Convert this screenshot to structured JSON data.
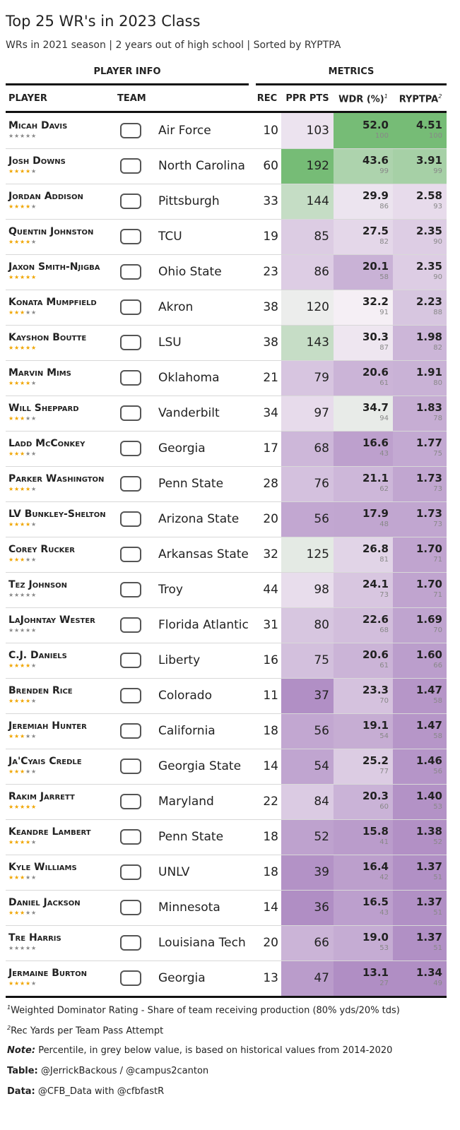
{
  "header": {
    "title": "Top 25 WR's in 2023 Class",
    "subtitle": "WRs in 2021 season | 2 years out of high school | Sorted by RYPTPA"
  },
  "table": {
    "groups": [
      "PLAYER INFO",
      "METRICS"
    ],
    "columns": {
      "player": "PLAYER",
      "team": "TEAM",
      "rec": "REC",
      "ppr_pts": "PPR PTS",
      "wdr": "WDR (%)",
      "wdr_sup": "1",
      "ryptpa": "RYPTPA",
      "ryptpa_sup": "2"
    },
    "rows": [
      {
        "player": "Micah Davis",
        "stars": 0,
        "team": "Air Force",
        "rec": 10,
        "ppr_pts": 103,
        "wdr": "52.0",
        "wdr_pct": 100,
        "ryptpa": "4.51",
        "ryptpa_pct": 100
      },
      {
        "player": "Josh Downs",
        "stars": 4,
        "team": "North Carolina",
        "rec": 60,
        "ppr_pts": 192,
        "wdr": "43.6",
        "wdr_pct": 99,
        "ryptpa": "3.91",
        "ryptpa_pct": 99
      },
      {
        "player": "Jordan Addison",
        "stars": 4,
        "team": "Pittsburgh",
        "rec": 33,
        "ppr_pts": 144,
        "wdr": "29.9",
        "wdr_pct": 86,
        "ryptpa": "2.58",
        "ryptpa_pct": 93
      },
      {
        "player": "Quentin Johnston",
        "stars": 4,
        "team": "TCU",
        "rec": 19,
        "ppr_pts": 85,
        "wdr": "27.5",
        "wdr_pct": 82,
        "ryptpa": "2.35",
        "ryptpa_pct": 90
      },
      {
        "player": "Jaxon Smith-Njigba",
        "stars": 5,
        "team": "Ohio State",
        "rec": 23,
        "ppr_pts": 86,
        "wdr": "20.1",
        "wdr_pct": 58,
        "ryptpa": "2.35",
        "ryptpa_pct": 90
      },
      {
        "player": "Konata Mumpfield",
        "stars": 3,
        "team": "Akron",
        "rec": 38,
        "ppr_pts": 120,
        "wdr": "32.2",
        "wdr_pct": 91,
        "ryptpa": "2.23",
        "ryptpa_pct": 88
      },
      {
        "player": "Kayshon Boutte",
        "stars": 5,
        "team": "LSU",
        "rec": 38,
        "ppr_pts": 143,
        "wdr": "30.3",
        "wdr_pct": 87,
        "ryptpa": "1.98",
        "ryptpa_pct": 82
      },
      {
        "player": "Marvin Mims",
        "stars": 4,
        "team": "Oklahoma",
        "rec": 21,
        "ppr_pts": 79,
        "wdr": "20.6",
        "wdr_pct": 61,
        "ryptpa": "1.91",
        "ryptpa_pct": 80
      },
      {
        "player": "Will Sheppard",
        "stars": 3,
        "team": "Vanderbilt",
        "rec": 34,
        "ppr_pts": 97,
        "wdr": "34.7",
        "wdr_pct": 94,
        "ryptpa": "1.83",
        "ryptpa_pct": 78
      },
      {
        "player": "Ladd McConkey",
        "stars": 3,
        "team": "Georgia",
        "rec": 17,
        "ppr_pts": 68,
        "wdr": "16.6",
        "wdr_pct": 43,
        "ryptpa": "1.77",
        "ryptpa_pct": 75
      },
      {
        "player": "Parker Washington",
        "stars": 4,
        "team": "Penn State",
        "rec": 28,
        "ppr_pts": 76,
        "wdr": "21.1",
        "wdr_pct": 62,
        "ryptpa": "1.73",
        "ryptpa_pct": 73
      },
      {
        "player": "LV Bunkley-Shelton",
        "stars": 4,
        "team": "Arizona State",
        "rec": 20,
        "ppr_pts": 56,
        "wdr": "17.9",
        "wdr_pct": 48,
        "ryptpa": "1.73",
        "ryptpa_pct": 73
      },
      {
        "player": "Corey Rucker",
        "stars": 3,
        "team": "Arkansas State",
        "rec": 32,
        "ppr_pts": 125,
        "wdr": "26.8",
        "wdr_pct": 81,
        "ryptpa": "1.70",
        "ryptpa_pct": 71
      },
      {
        "player": "Tez Johnson",
        "stars": 0,
        "team": "Troy",
        "rec": 44,
        "ppr_pts": 98,
        "wdr": "24.1",
        "wdr_pct": 73,
        "ryptpa": "1.70",
        "ryptpa_pct": 71
      },
      {
        "player": "LaJohntay Wester",
        "stars": 0,
        "team": "Florida Atlantic",
        "rec": 31,
        "ppr_pts": 80,
        "wdr": "22.6",
        "wdr_pct": 68,
        "ryptpa": "1.69",
        "ryptpa_pct": 70
      },
      {
        "player": "C.J. Daniels",
        "stars": 4,
        "team": "Liberty",
        "rec": 16,
        "ppr_pts": 75,
        "wdr": "20.6",
        "wdr_pct": 61,
        "ryptpa": "1.60",
        "ryptpa_pct": 66
      },
      {
        "player": "Brenden Rice",
        "stars": 4,
        "team": "Colorado",
        "rec": 11,
        "ppr_pts": 37,
        "wdr": "23.3",
        "wdr_pct": 70,
        "ryptpa": "1.47",
        "ryptpa_pct": 58
      },
      {
        "player": "Jeremiah Hunter",
        "stars": 3,
        "team": "California",
        "rec": 18,
        "ppr_pts": 56,
        "wdr": "19.1",
        "wdr_pct": 54,
        "ryptpa": "1.47",
        "ryptpa_pct": 58
      },
      {
        "player": "Ja'Cyais Credle",
        "stars": 3,
        "team": "Georgia State",
        "rec": 14,
        "ppr_pts": 54,
        "wdr": "25.2",
        "wdr_pct": 77,
        "ryptpa": "1.46",
        "ryptpa_pct": 56
      },
      {
        "player": "Rakim Jarrett",
        "stars": 5,
        "team": "Maryland",
        "rec": 22,
        "ppr_pts": 84,
        "wdr": "20.3",
        "wdr_pct": 60,
        "ryptpa": "1.40",
        "ryptpa_pct": 53
      },
      {
        "player": "Keandre Lambert",
        "stars": 4,
        "team": "Penn State",
        "rec": 18,
        "ppr_pts": 52,
        "wdr": "15.8",
        "wdr_pct": 41,
        "ryptpa": "1.38",
        "ryptpa_pct": 52
      },
      {
        "player": "Kyle Williams",
        "stars": 3,
        "team": "UNLV",
        "rec": 18,
        "ppr_pts": 39,
        "wdr": "16.4",
        "wdr_pct": 42,
        "ryptpa": "1.37",
        "ryptpa_pct": 51
      },
      {
        "player": "Daniel Jackson",
        "stars": 3,
        "team": "Minnesota",
        "rec": 14,
        "ppr_pts": 36,
        "wdr": "16.5",
        "wdr_pct": 43,
        "ryptpa": "1.37",
        "ryptpa_pct": 51
      },
      {
        "player": "Tre Harris",
        "stars": 0,
        "team": "Louisiana Tech",
        "rec": 20,
        "ppr_pts": 66,
        "wdr": "19.0",
        "wdr_pct": 53,
        "ryptpa": "1.37",
        "ryptpa_pct": 51
      },
      {
        "player": "Jermaine Burton",
        "stars": 4,
        "team": "Georgia",
        "rec": 13,
        "ppr_pts": 47,
        "wdr": "13.1",
        "wdr_pct": 27,
        "ryptpa": "1.34",
        "ryptpa_pct": 49
      }
    ]
  },
  "footer": {
    "footnotes": [
      {
        "sup": "1",
        "text": "Weighted Dominator Rating - Share of team receiving production (80% yds/20% tds)"
      },
      {
        "sup": "2",
        "text": "Rec Yards per Team Pass Attempt"
      }
    ],
    "notes": [
      {
        "label": "Note:",
        "text": "Percentile, in grey below value, is based on historical values from 2014-2020"
      },
      {
        "label": "Table:",
        "text": "@JerrickBackous / @campus2canton"
      },
      {
        "label": "Data:",
        "text": "@CFB_Data with @cfbfastR"
      }
    ]
  }
}
